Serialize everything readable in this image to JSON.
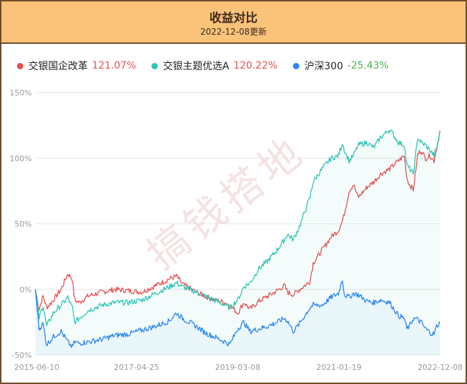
{
  "header": {
    "title": "收益对比",
    "subtitle": "2022-12-08更新"
  },
  "legend": [
    {
      "name": "交银国企改革",
      "value": "121.07%",
      "color": "#e8504f",
      "value_color": "#e8504f"
    },
    {
      "name": "交银主题优选A",
      "value": "120.22%",
      "color": "#2dc5b6",
      "value_color": "#e8504f"
    },
    {
      "name": "沪深300",
      "value": "-25.43%",
      "color": "#2c86f0",
      "value_color": "#4cb34c"
    }
  ],
  "watermark": "搞钱搭地",
  "chart_data": {
    "type": "line",
    "x_tick_labels": [
      "2015-06-10",
      "2017-04-25",
      "2019-03-08",
      "2021-01-19",
      "2022-12-08"
    ],
    "y_tick_labels": [
      "150%",
      "100%",
      "50%",
      "0%",
      "-50%"
    ],
    "y_ticks": [
      150,
      100,
      50,
      0,
      -50
    ],
    "ylim": [
      -50,
      150
    ],
    "xlim": [
      "2015-06-10",
      "2022-12-08"
    ],
    "y_unit": "%",
    "grid": "horizontal",
    "series": [
      {
        "name": "交银国企改革",
        "color": "#e8504f",
        "area": false,
        "points": [
          [
            "2015-06-10",
            0
          ],
          [
            "2015-07-05",
            -15
          ],
          [
            "2015-08-01",
            -5
          ],
          [
            "2015-08-25",
            -14
          ],
          [
            "2015-10-10",
            -8
          ],
          [
            "2015-12-01",
            0
          ],
          [
            "2016-01-15",
            12
          ],
          [
            "2016-02-15",
            8
          ],
          [
            "2016-03-01",
            -8
          ],
          [
            "2016-04-01",
            -10
          ],
          [
            "2016-06-01",
            -5
          ],
          [
            "2016-09-01",
            -2
          ],
          [
            "2016-12-01",
            0
          ],
          [
            "2017-03-01",
            -1
          ],
          [
            "2017-06-01",
            -2
          ],
          [
            "2017-09-01",
            3
          ],
          [
            "2017-12-01",
            8
          ],
          [
            "2018-01-20",
            10
          ],
          [
            "2018-03-01",
            4
          ],
          [
            "2018-06-01",
            -2
          ],
          [
            "2018-08-01",
            -5
          ],
          [
            "2018-10-01",
            -8
          ],
          [
            "2018-12-15",
            -10
          ],
          [
            "2019-01-15",
            -12
          ],
          [
            "2019-03-10",
            -18
          ],
          [
            "2019-04-20",
            -10
          ],
          [
            "2019-06-01",
            -15
          ],
          [
            "2019-08-01",
            -9
          ],
          [
            "2019-10-01",
            -5
          ],
          [
            "2019-12-01",
            -1
          ],
          [
            "2020-01-20",
            3
          ],
          [
            "2020-02-10",
            -2
          ],
          [
            "2020-03-20",
            -4
          ],
          [
            "2020-05-01",
            0
          ],
          [
            "2020-07-10",
            6
          ],
          [
            "2020-08-01",
            20
          ],
          [
            "2020-10-01",
            30
          ],
          [
            "2020-12-01",
            40
          ],
          [
            "2021-01-19",
            45
          ],
          [
            "2021-02-15",
            52
          ],
          [
            "2021-03-01",
            58
          ],
          [
            "2021-04-01",
            75
          ],
          [
            "2021-05-01",
            80
          ],
          [
            "2021-06-01",
            70
          ],
          [
            "2021-08-01",
            78
          ],
          [
            "2021-09-15",
            82
          ],
          [
            "2021-11-01",
            88
          ],
          [
            "2022-01-01",
            92
          ],
          [
            "2022-03-01",
            98
          ],
          [
            "2022-04-10",
            102
          ],
          [
            "2022-04-27",
            85
          ],
          [
            "2022-05-15",
            80
          ],
          [
            "2022-06-10",
            76
          ],
          [
            "2022-07-10",
            103
          ],
          [
            "2022-08-01",
            106
          ],
          [
            "2022-09-01",
            100
          ],
          [
            "2022-10-01",
            102
          ],
          [
            "2022-10-28",
            98
          ],
          [
            "2022-11-15",
            108
          ],
          [
            "2022-12-08",
            121.07
          ]
        ]
      },
      {
        "name": "交银主题优选A",
        "color": "#2dc5b6",
        "area": true,
        "points": [
          [
            "2015-06-10",
            0
          ],
          [
            "2015-07-05",
            -22
          ],
          [
            "2015-08-01",
            -12
          ],
          [
            "2015-08-25",
            -28
          ],
          [
            "2015-10-10",
            -18
          ],
          [
            "2015-12-01",
            -12
          ],
          [
            "2016-01-15",
            -6
          ],
          [
            "2016-02-15",
            -14
          ],
          [
            "2016-03-01",
            -25
          ],
          [
            "2016-04-01",
            -22
          ],
          [
            "2016-06-01",
            -16
          ],
          [
            "2016-09-01",
            -12
          ],
          [
            "2016-12-01",
            -10
          ],
          [
            "2017-03-01",
            -10
          ],
          [
            "2017-06-01",
            -8
          ],
          [
            "2017-09-01",
            -3
          ],
          [
            "2017-12-01",
            2
          ],
          [
            "2018-01-20",
            5
          ],
          [
            "2018-03-01",
            2
          ],
          [
            "2018-06-01",
            -2
          ],
          [
            "2018-08-01",
            -5
          ],
          [
            "2018-10-01",
            -8
          ],
          [
            "2018-12-15",
            -12
          ],
          [
            "2019-01-15",
            -14
          ],
          [
            "2019-03-10",
            -8
          ],
          [
            "2019-04-20",
            2
          ],
          [
            "2019-06-01",
            5
          ],
          [
            "2019-08-01",
            16
          ],
          [
            "2019-10-01",
            22
          ],
          [
            "2019-12-01",
            30
          ],
          [
            "2020-01-20",
            38
          ],
          [
            "2020-02-10",
            42
          ],
          [
            "2020-03-20",
            38
          ],
          [
            "2020-05-01",
            48
          ],
          [
            "2020-07-10",
            70
          ],
          [
            "2020-08-01",
            82
          ],
          [
            "2020-10-01",
            92
          ],
          [
            "2020-12-01",
            100
          ],
          [
            "2021-01-19",
            102
          ],
          [
            "2021-02-15",
            112
          ],
          [
            "2021-03-01",
            106
          ],
          [
            "2021-04-01",
            98
          ],
          [
            "2021-05-01",
            102
          ],
          [
            "2021-06-01",
            110
          ],
          [
            "2021-08-01",
            112
          ],
          [
            "2021-09-15",
            108
          ],
          [
            "2021-11-01",
            116
          ],
          [
            "2022-01-01",
            122
          ],
          [
            "2022-03-01",
            112
          ],
          [
            "2022-04-10",
            110
          ],
          [
            "2022-04-27",
            95
          ],
          [
            "2022-05-15",
            92
          ],
          [
            "2022-06-10",
            88
          ],
          [
            "2022-07-10",
            116
          ],
          [
            "2022-08-01",
            112
          ],
          [
            "2022-09-01",
            110
          ],
          [
            "2022-10-01",
            106
          ],
          [
            "2022-10-28",
            102
          ],
          [
            "2022-11-15",
            108
          ],
          [
            "2022-12-08",
            120.22
          ]
        ]
      },
      {
        "name": "沪深300",
        "color": "#2c86f0",
        "area": true,
        "points": [
          [
            "2015-06-10",
            0
          ],
          [
            "2015-07-05",
            -30
          ],
          [
            "2015-08-01",
            -26
          ],
          [
            "2015-08-25",
            -42
          ],
          [
            "2015-10-10",
            -36
          ],
          [
            "2015-12-01",
            -32
          ],
          [
            "2016-01-15",
            -40
          ],
          [
            "2016-02-15",
            -44
          ],
          [
            "2016-03-01",
            -40
          ],
          [
            "2016-04-01",
            -41
          ],
          [
            "2016-06-01",
            -40
          ],
          [
            "2016-09-01",
            -38
          ],
          [
            "2016-12-01",
            -35
          ],
          [
            "2017-03-01",
            -34
          ],
          [
            "2017-06-01",
            -31
          ],
          [
            "2017-09-01",
            -28
          ],
          [
            "2017-12-01",
            -24
          ],
          [
            "2018-01-20",
            -18
          ],
          [
            "2018-03-01",
            -22
          ],
          [
            "2018-06-01",
            -28
          ],
          [
            "2018-08-01",
            -33
          ],
          [
            "2018-10-01",
            -36
          ],
          [
            "2018-12-15",
            -40
          ],
          [
            "2019-01-15",
            -42
          ],
          [
            "2019-03-10",
            -30
          ],
          [
            "2019-04-20",
            -25
          ],
          [
            "2019-06-01",
            -32
          ],
          [
            "2019-08-01",
            -30
          ],
          [
            "2019-10-01",
            -28
          ],
          [
            "2019-12-01",
            -25
          ],
          [
            "2020-01-20",
            -22
          ],
          [
            "2020-02-10",
            -24
          ],
          [
            "2020-03-20",
            -32
          ],
          [
            "2020-05-01",
            -26
          ],
          [
            "2020-07-10",
            -14
          ],
          [
            "2020-08-01",
            -12
          ],
          [
            "2020-10-01",
            -12
          ],
          [
            "2020-12-01",
            -6
          ],
          [
            "2021-01-19",
            -3
          ],
          [
            "2021-02-15",
            8
          ],
          [
            "2021-03-01",
            -4
          ],
          [
            "2021-04-01",
            -6
          ],
          [
            "2021-05-01",
            -3
          ],
          [
            "2021-06-01",
            -4
          ],
          [
            "2021-08-01",
            -9
          ],
          [
            "2021-09-15",
            -10
          ],
          [
            "2021-11-01",
            -8
          ],
          [
            "2022-01-01",
            -10
          ],
          [
            "2022-03-01",
            -20
          ],
          [
            "2022-04-10",
            -22
          ],
          [
            "2022-04-27",
            -30
          ],
          [
            "2022-05-15",
            -28
          ],
          [
            "2022-06-10",
            -22
          ],
          [
            "2022-07-10",
            -23
          ],
          [
            "2022-08-01",
            -25
          ],
          [
            "2022-09-01",
            -30
          ],
          [
            "2022-10-01",
            -33
          ],
          [
            "2022-10-28",
            -34
          ],
          [
            "2022-11-15",
            -28
          ],
          [
            "2022-12-08",
            -25.43
          ]
        ]
      }
    ]
  }
}
